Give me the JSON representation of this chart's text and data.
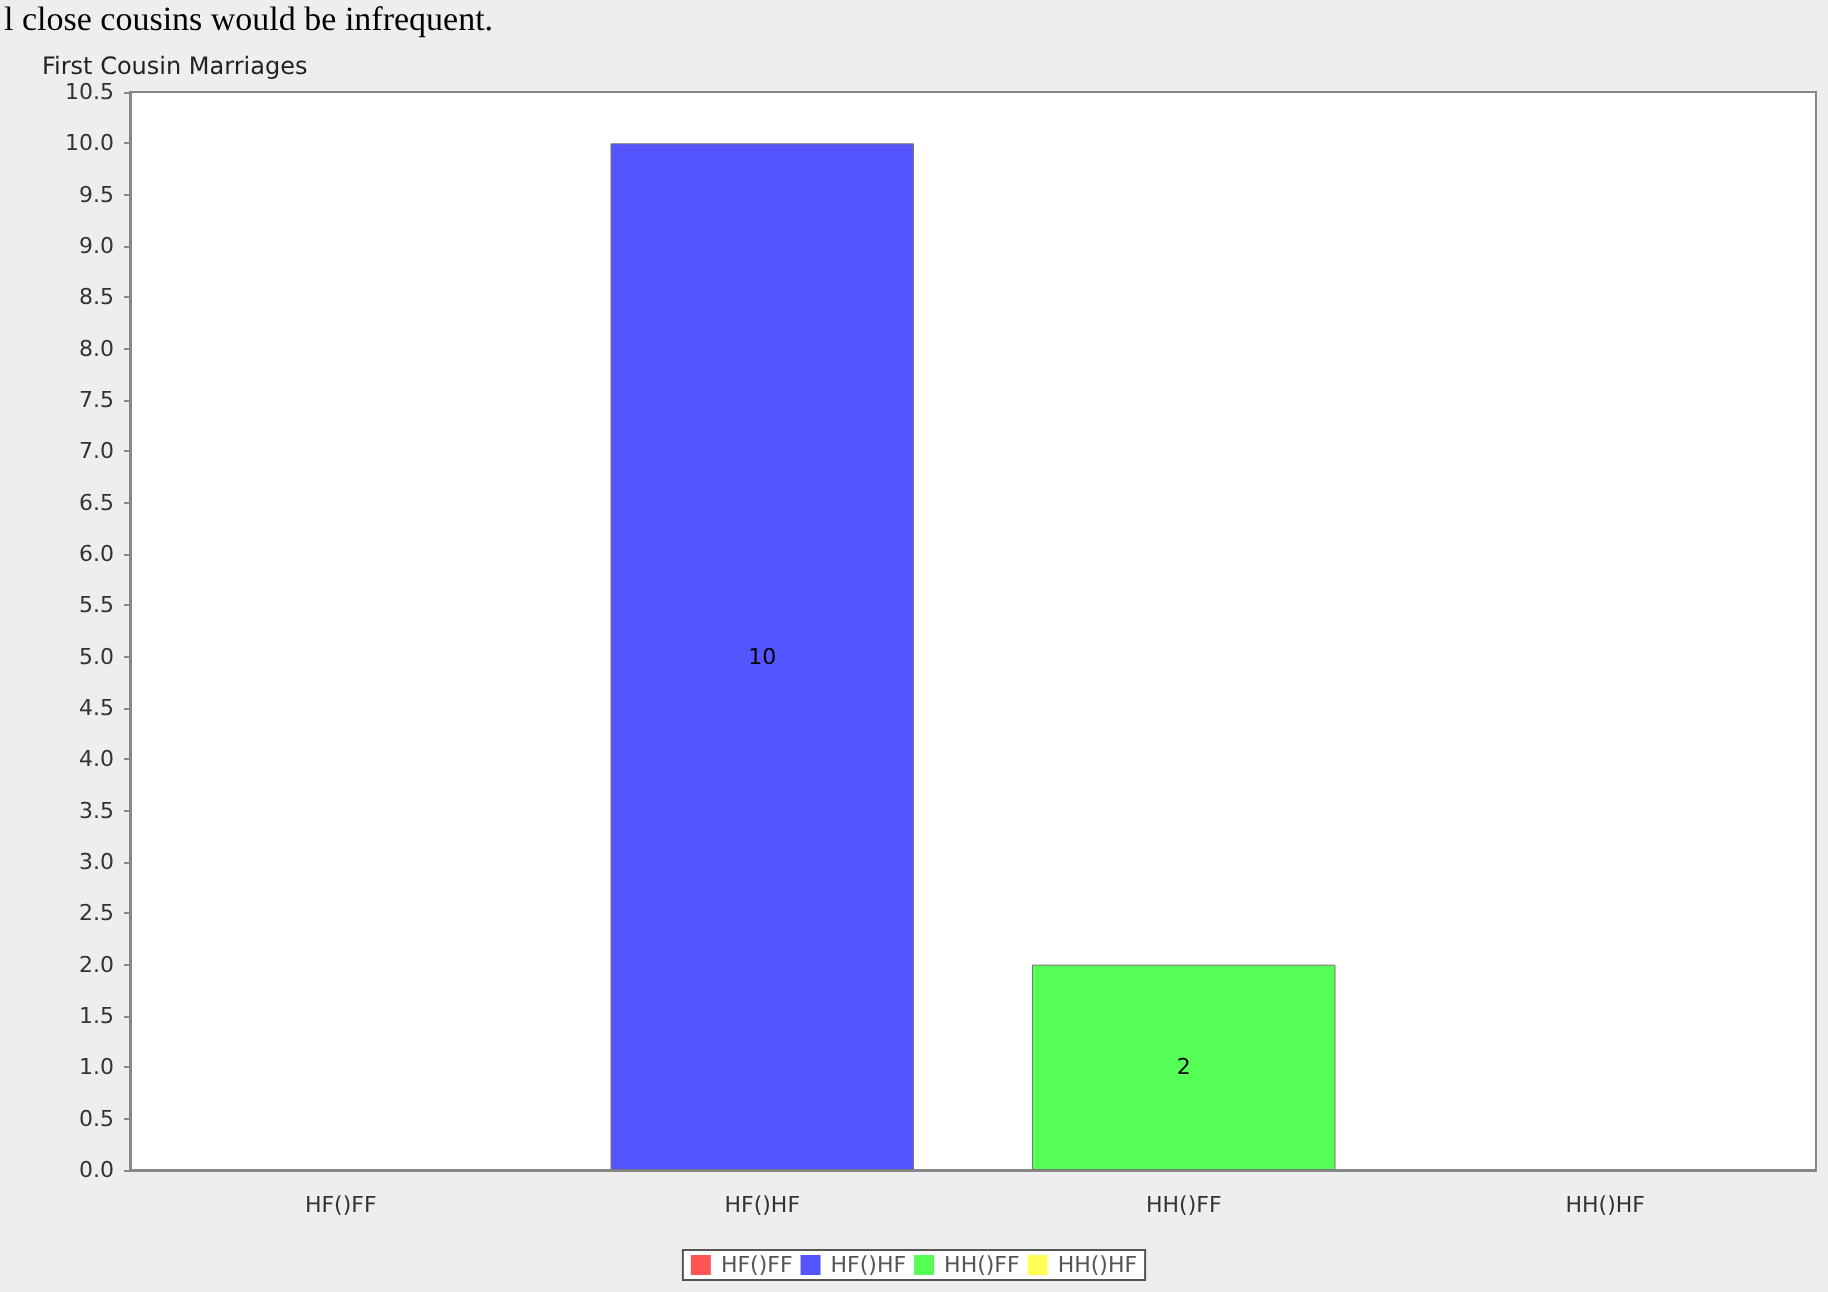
{
  "chart_data": {
    "type": "bar",
    "title": "First Cousin Marriages",
    "annotations": [
      "l close cousins would be infrequent."
    ],
    "categories": [
      "HF()FF",
      "HF()HF",
      "HH()FF",
      "HH()HF"
    ],
    "series": [
      {
        "name": "HF()FF",
        "color": "#ff5555",
        "values": [
          0,
          null,
          null,
          null
        ],
        "value_labels": [
          null,
          null,
          null,
          null
        ]
      },
      {
        "name": "HF()HF",
        "color": "#5555ff",
        "values": [
          null,
          10,
          null,
          null
        ],
        "value_labels": [
          null,
          "10",
          null,
          null
        ]
      },
      {
        "name": "HH()FF",
        "color": "#55ff55",
        "values": [
          null,
          null,
          2,
          null
        ],
        "value_labels": [
          null,
          null,
          "2",
          null
        ]
      },
      {
        "name": "HH()HF",
        "color": "#ffff55",
        "values": [
          null,
          null,
          null,
          0
        ],
        "value_labels": [
          null,
          null,
          null,
          null
        ]
      }
    ],
    "ylim": [
      0,
      10.5
    ],
    "yticks": [
      {
        "value": 0,
        "label": "0.0"
      },
      {
        "value": 0.5,
        "label": "0.5"
      },
      {
        "value": 1,
        "label": "1.0"
      },
      {
        "value": 1.5,
        "label": "1.5"
      },
      {
        "value": 2,
        "label": "2.0"
      },
      {
        "value": 2.5,
        "label": "2.5"
      },
      {
        "value": 3,
        "label": "3.0"
      },
      {
        "value": 3.5,
        "label": "3.5"
      },
      {
        "value": 4,
        "label": "4.0"
      },
      {
        "value": 4.5,
        "label": "4.5"
      },
      {
        "value": 5,
        "label": "5.0"
      },
      {
        "value": 5.5,
        "label": "5.5"
      },
      {
        "value": 6,
        "label": "6.0"
      },
      {
        "value": 6.5,
        "label": "6.5"
      },
      {
        "value": 7,
        "label": "7.0"
      },
      {
        "value": 7.5,
        "label": "7.5"
      },
      {
        "value": 8,
        "label": "8.0"
      },
      {
        "value": 8.5,
        "label": "8.5"
      },
      {
        "value": 9,
        "label": "9.0"
      },
      {
        "value": 9.5,
        "label": "9.5"
      },
      {
        "value": 10,
        "label": "10.0"
      },
      {
        "value": 10.5,
        "label": "10.5"
      }
    ],
    "grid": false,
    "legend": "bottom"
  }
}
